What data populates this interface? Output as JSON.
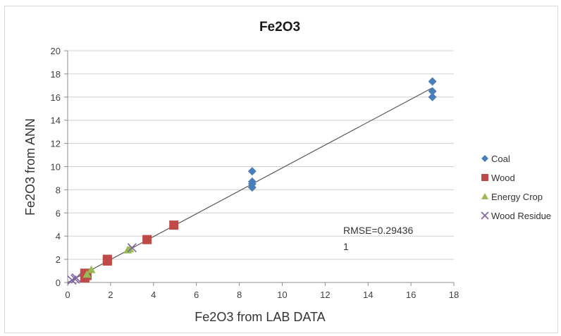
{
  "chart_data": {
    "type": "scatter",
    "title": "Fe2O3",
    "xlabel": "Fe2O3 from LAB DATA",
    "ylabel": "Fe2O3 from ANN",
    "xlim": [
      0,
      18
    ],
    "ylim": [
      0,
      20
    ],
    "xticks": [
      "0",
      "2",
      "4",
      "6",
      "8",
      "10",
      "12",
      "14",
      "16",
      "18"
    ],
    "yticks": [
      "0",
      "2",
      "4",
      "6",
      "8",
      "10",
      "12",
      "14",
      "16",
      "18",
      "20"
    ],
    "grid": "horizontal",
    "legend_position": "right",
    "series": [
      {
        "name": "Coal",
        "marker": "diamond",
        "color": "#4a7ebb",
        "points": [
          [
            17.0,
            17.35
          ],
          [
            17.0,
            16.5
          ],
          [
            17.0,
            16.0
          ],
          [
            8.6,
            9.6
          ],
          [
            8.6,
            8.7
          ],
          [
            8.6,
            8.5
          ],
          [
            8.6,
            8.2
          ]
        ]
      },
      {
        "name": "Wood",
        "marker": "square",
        "color": "#be4b48",
        "points": [
          [
            0.8,
            0.4
          ],
          [
            0.9,
            0.6
          ],
          [
            0.8,
            0.8
          ],
          [
            1.85,
            1.85
          ],
          [
            1.85,
            2.0
          ],
          [
            3.7,
            3.7
          ],
          [
            4.95,
            4.95
          ]
        ]
      },
      {
        "name": "Energy Crop",
        "marker": "triangle",
        "color": "#98b954",
        "points": [
          [
            0.9,
            0.7
          ],
          [
            1.1,
            1.1
          ],
          [
            2.8,
            2.8
          ],
          [
            2.9,
            2.9
          ]
        ]
      },
      {
        "name": "Wood Residue",
        "marker": "cross",
        "color": "#7e63a0",
        "points": [
          [
            0.2,
            0.2
          ],
          [
            0.35,
            0.3
          ],
          [
            0.4,
            0.4
          ],
          [
            3.0,
            3.0
          ]
        ]
      }
    ],
    "trendline": {
      "x": [
        0,
        17
      ],
      "y": [
        0,
        16.8
      ],
      "color": "#595959"
    },
    "annotation": {
      "line1": "RMSE=0.29436",
      "line2": "1"
    }
  }
}
